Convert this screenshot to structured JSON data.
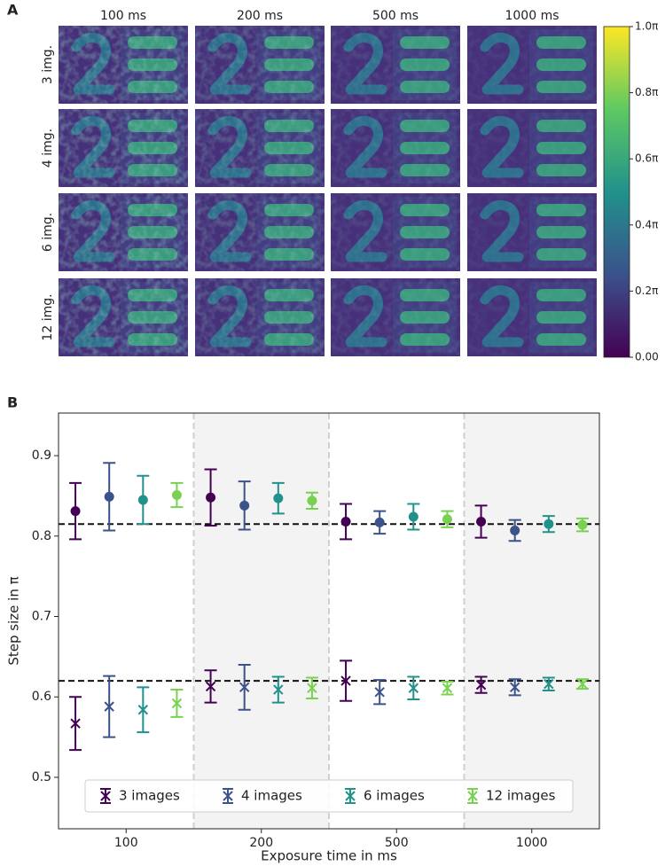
{
  "chart_data": [
    {
      "type": "image_grid",
      "label": "A",
      "columns": [
        "100 ms",
        "200 ms",
        "500 ms",
        "1000 ms"
      ],
      "rows": [
        "3 img.",
        "4 img.",
        "6 img.",
        "12 img."
      ],
      "clim": [
        0,
        1
      ],
      "cticks": [
        {
          "value": 0,
          "label": "0.00"
        },
        {
          "value": 0.2,
          "label": "0.2π"
        },
        {
          "value": 0.4,
          "label": "0.4π"
        },
        {
          "value": 0.6,
          "label": "0.6π"
        },
        {
          "value": 0.8,
          "label": "0.8π"
        },
        {
          "value": 1.0,
          "label": "1.0π"
        }
      ]
    },
    {
      "type": "errorbar",
      "label": "B",
      "ylabel": "Step size in π",
      "xlabel": "Exposure time in ms",
      "categories": [
        "100",
        "200",
        "500",
        "1000"
      ],
      "ylim": [
        0.436,
        0.953
      ],
      "yticks": [
        0.5,
        0.6,
        0.7,
        0.8,
        0.9
      ],
      "hlines": [
        0.815,
        0.62
      ],
      "legend": "lower center",
      "series": [
        {
          "name": "3 images",
          "color": "#440154",
          "values": [
            0.567,
            0.613,
            0.62,
            0.615
          ],
          "errors": [
            0.033,
            0.02,
            0.025,
            0.01
          ],
          "values_2": [
            0.831,
            0.848,
            0.818,
            0.818
          ],
          "errors_2": [
            0.035,
            0.035,
            0.022,
            0.02
          ]
        },
        {
          "name": "4 images",
          "color": "#3b528b",
          "values": [
            0.588,
            0.612,
            0.606,
            0.612
          ],
          "errors": [
            0.038,
            0.028,
            0.015,
            0.01
          ],
          "values_2": [
            0.849,
            0.838,
            0.817,
            0.807
          ],
          "errors_2": [
            0.042,
            0.03,
            0.014,
            0.013
          ]
        },
        {
          "name": "6 images",
          "color": "#21918c",
          "values": [
            0.584,
            0.609,
            0.611,
            0.616
          ],
          "errors": [
            0.028,
            0.016,
            0.014,
            0.008
          ],
          "values_2": [
            0.845,
            0.847,
            0.824,
            0.815
          ],
          "errors_2": [
            0.03,
            0.019,
            0.016,
            0.01
          ]
        },
        {
          "name": "12 images",
          "color": "#7ad151",
          "values": [
            0.592,
            0.611,
            0.611,
            0.616
          ],
          "errors": [
            0.017,
            0.013,
            0.008,
            0.006
          ],
          "values_2": [
            0.851,
            0.844,
            0.821,
            0.814
          ],
          "errors_2": [
            0.015,
            0.01,
            0.01,
            0.008
          ]
        }
      ]
    }
  ]
}
